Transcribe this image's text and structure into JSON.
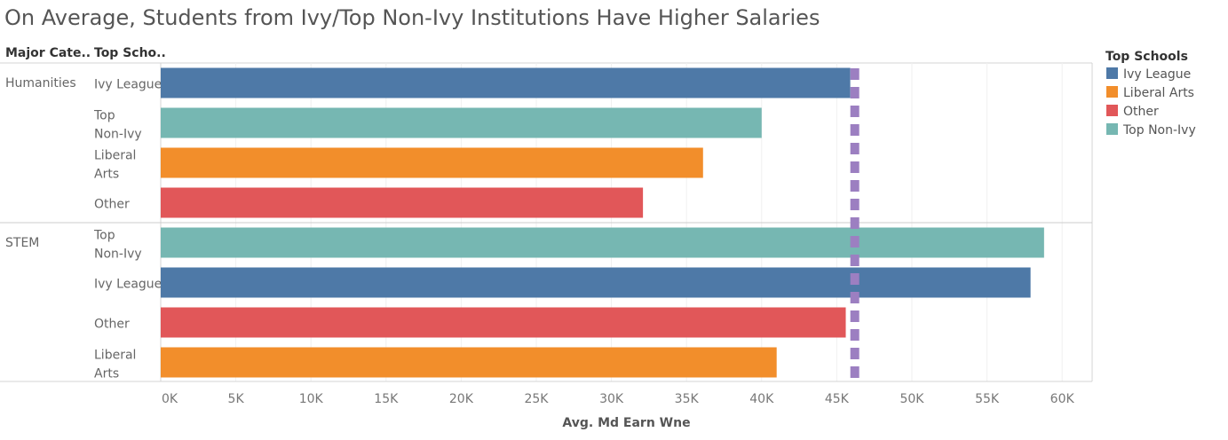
{
  "chart_data": {
    "type": "bar",
    "orientation": "horizontal",
    "title": "On Average, Students from Ivy/Top Non-Ivy Institutions Have Higher Salaries",
    "row_headers": [
      "Major Cate..",
      "Top Scho.."
    ],
    "xlabel": "Avg. Md Earn Wne",
    "xlim": [
      0,
      62000
    ],
    "xticks": [
      0,
      5000,
      10000,
      15000,
      20000,
      25000,
      30000,
      35000,
      40000,
      45000,
      50000,
      55000,
      60000
    ],
    "xtick_labels": [
      "0K",
      "5K",
      "10K",
      "15K",
      "20K",
      "25K",
      "30K",
      "35K",
      "40K",
      "45K",
      "50K",
      "55K",
      "60K"
    ],
    "reference_line": {
      "value": 46200,
      "style": "dashed",
      "color": "#9c7fc1"
    },
    "grid": "vertical",
    "groups": [
      {
        "name": "Humanities",
        "bars": [
          {
            "label": "Ivy League",
            "category": "Ivy League",
            "value": 45900
          },
          {
            "label": "Top Non-Ivy",
            "category": "Top Non-Ivy",
            "value": 40000
          },
          {
            "label": "Liberal Arts",
            "category": "Liberal Arts",
            "value": 36100
          },
          {
            "label": "Other",
            "category": "Other",
            "value": 32100
          }
        ]
      },
      {
        "name": "STEM",
        "bars": [
          {
            "label": "Top Non-Ivy",
            "category": "Top Non-Ivy",
            "value": 58800
          },
          {
            "label": "Ivy League",
            "category": "Ivy League",
            "value": 57900
          },
          {
            "label": "Other",
            "category": "Other",
            "value": 45600
          },
          {
            "label": "Liberal Arts",
            "category": "Liberal Arts",
            "value": 41000
          }
        ]
      }
    ],
    "legend": {
      "title": "Top Schools",
      "placement": "right",
      "items": [
        {
          "name": "Ivy League",
          "color": "#4e79a7"
        },
        {
          "name": "Liberal Arts",
          "color": "#f28e2b"
        },
        {
          "name": "Other",
          "color": "#e15759"
        },
        {
          "name": "Top Non-Ivy",
          "color": "#76b7b2"
        }
      ]
    }
  }
}
